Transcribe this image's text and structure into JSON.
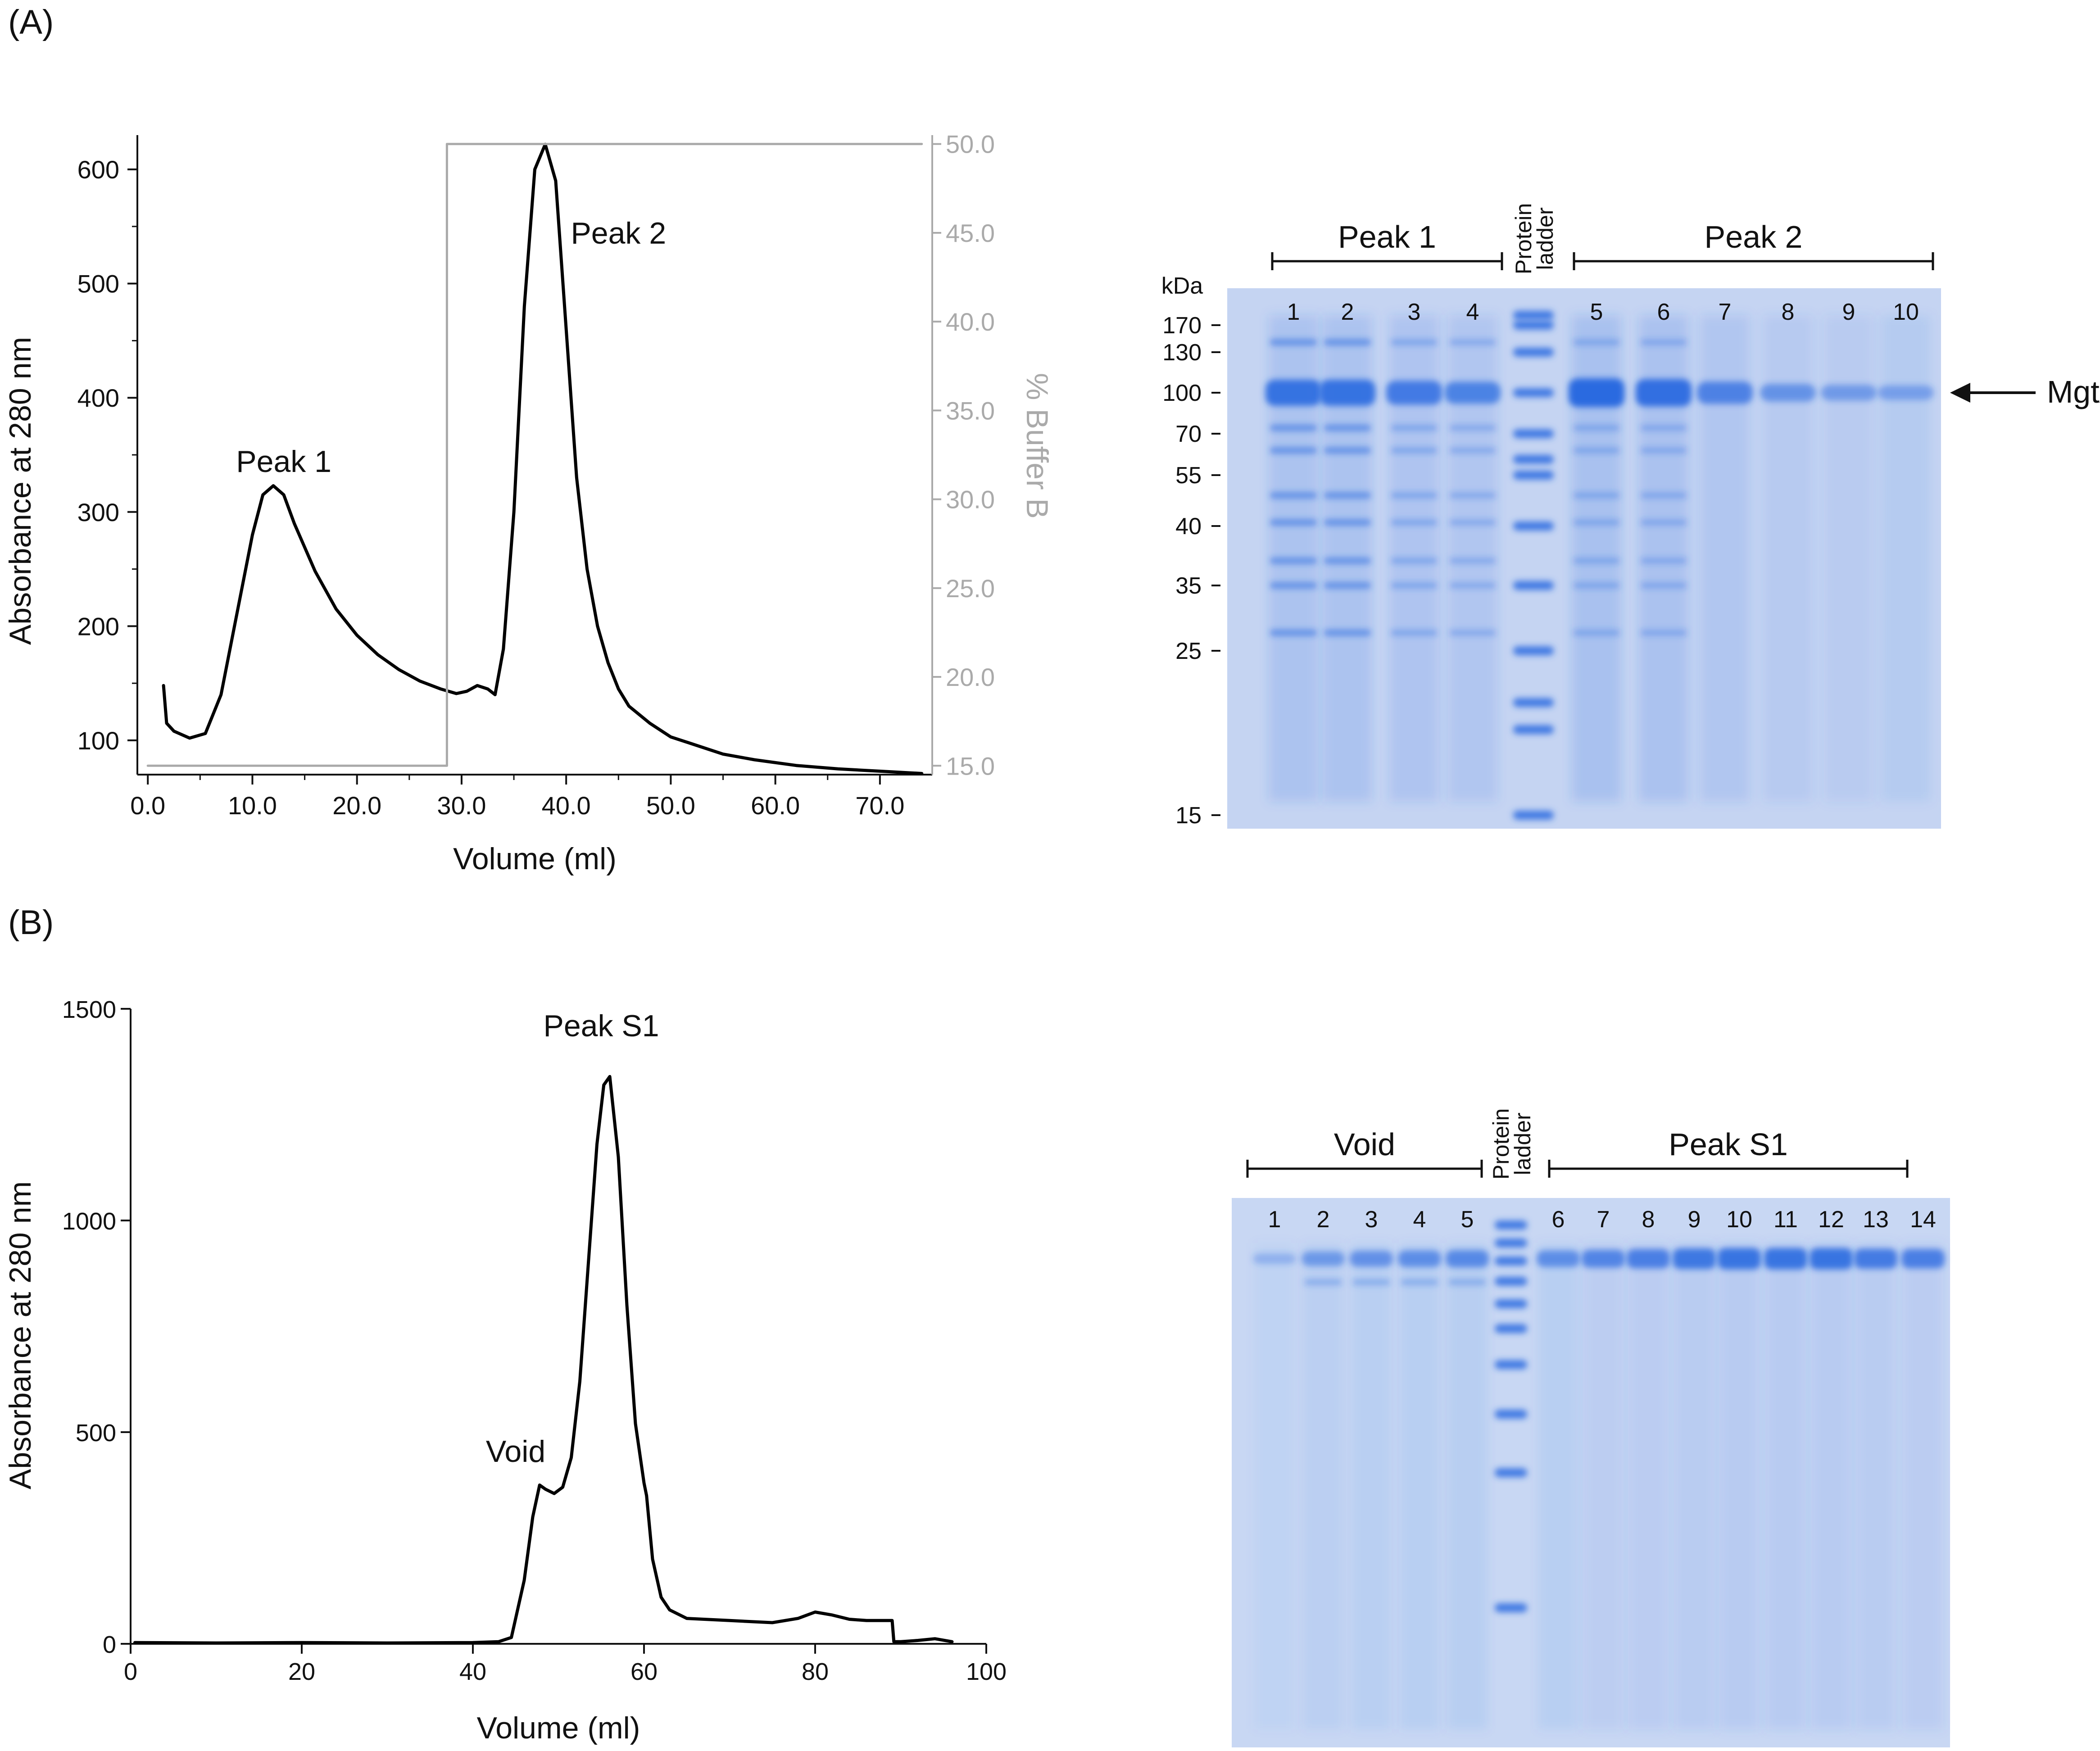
{
  "panel_labels": [
    "(A)",
    "(B)"
  ],
  "chart_data": [
    {
      "type": "line",
      "xlabel": "Volume (ml)",
      "ylabel": "Absorbance at 280 nm",
      "y2label": "% Buffer B",
      "xlim": [
        -1,
        75
      ],
      "ylim": [
        70,
        630
      ],
      "y2lim": [
        14.5,
        50.5
      ],
      "x_ticks": [
        0,
        10,
        20,
        30,
        40,
        50,
        60,
        70
      ],
      "x_tick_labels": [
        "0.0",
        "10.0",
        "20.0",
        "30.0",
        "40.0",
        "50.0",
        "60.0",
        "70.0"
      ],
      "y_ticks": [
        100,
        200,
        300,
        400,
        500,
        600
      ],
      "y_tick_labels": [
        "100",
        "200",
        "300",
        "400",
        "500",
        "600"
      ],
      "y2_ticks": [
        15,
        20,
        25,
        30,
        35,
        40,
        45,
        50
      ],
      "y2_tick_labels": [
        "15.0",
        "20.0",
        "25.0",
        "30.0",
        "35.0",
        "40.0",
        "45.0",
        "50.0"
      ],
      "grid": false,
      "annotations": [
        {
          "text": "Peak 1",
          "x": 13,
          "y": 335
        },
        {
          "text": "Peak 2",
          "x": 45,
          "y": 535
        }
      ],
      "series": [
        {
          "axis": "left",
          "color": "#000000",
          "x": [
            1.5,
            1.8,
            2.5,
            4,
            5.5,
            7,
            8.5,
            10,
            11,
            12,
            13,
            14,
            16,
            18,
            20,
            22,
            24,
            26,
            28,
            29.5,
            30.5,
            31.5,
            32.5,
            33.2,
            34,
            35,
            36,
            37,
            38,
            39,
            40,
            41,
            42,
            43,
            44,
            45,
            46,
            48,
            50,
            52,
            55,
            58,
            62,
            66,
            70,
            74
          ],
          "y": [
            148,
            115,
            108,
            102,
            106,
            140,
            210,
            280,
            315,
            323,
            315,
            290,
            248,
            215,
            192,
            175,
            162,
            152,
            145,
            141,
            143,
            148,
            145,
            140,
            180,
            300,
            480,
            600,
            622,
            590,
            460,
            330,
            250,
            200,
            168,
            145,
            130,
            115,
            103,
            97,
            88,
            83,
            78,
            75,
            73,
            71
          ]
        },
        {
          "axis": "right",
          "color": "#aaaaaa",
          "x": [
            0,
            28.6,
            28.6,
            74
          ],
          "y": [
            15,
            15,
            50,
            50
          ]
        }
      ]
    },
    {
      "type": "line",
      "xlabel": "Volume (ml)",
      "ylabel": "Absorbance at 280 nm",
      "xlim": [
        0,
        100
      ],
      "ylim": [
        0,
        1500
      ],
      "x_ticks": [
        0,
        20,
        40,
        60,
        80,
        100
      ],
      "x_tick_labels": [
        "0",
        "20",
        "40",
        "60",
        "80",
        "100"
      ],
      "y_ticks": [
        0,
        500,
        1000,
        1500
      ],
      "y_tick_labels": [
        "0",
        "500",
        "1000",
        "1500"
      ],
      "grid": false,
      "annotations": [
        {
          "text": "Void",
          "x": 45,
          "y": 430
        },
        {
          "text": "Peak S1",
          "x": 55,
          "y": 1435
        }
      ],
      "series": [
        {
          "color": "#000000",
          "x": [
            0.5,
            10,
            20,
            30,
            40,
            43,
            44.5,
            46,
            47,
            47.8,
            48.5,
            49.5,
            50.5,
            51.5,
            52.5,
            53.5,
            54.5,
            55.3,
            56,
            57,
            58,
            59,
            60,
            60.3,
            61,
            62,
            63,
            65,
            70,
            75,
            78,
            80,
            82,
            84,
            86,
            89,
            89.2,
            90,
            92,
            94,
            96
          ],
          "y": [
            3,
            2,
            3,
            2,
            3,
            5,
            15,
            150,
            300,
            375,
            365,
            355,
            370,
            440,
            620,
            900,
            1180,
            1320,
            1340,
            1150,
            800,
            520,
            380,
            350,
            200,
            110,
            80,
            60,
            55,
            50,
            60,
            75,
            68,
            58,
            55,
            55,
            5,
            5,
            8,
            12,
            5
          ]
        }
      ]
    }
  ],
  "gel_a": {
    "group_labels": [
      "Peak 1",
      "Peak 2"
    ],
    "ladder_label_line1": "Protein",
    "ladder_label_line2": "ladder",
    "kda_label": "kDa",
    "lane_numbers": [
      "1",
      "2",
      "3",
      "4",
      "5",
      "6",
      "7",
      "8",
      "9",
      "10"
    ],
    "markers": [
      "170",
      "130",
      "100",
      "70",
      "55",
      "40",
      "35",
      "25",
      "15"
    ],
    "arrow_label": "MgtA",
    "band_intensity": [
      0.85,
      0.85,
      0.72,
      0.6,
      1.0,
      0.92,
      0.62,
      0.35,
      0.25,
      0.18
    ],
    "colors": {
      "gel": "#c5d4f2",
      "band": "#2a6ae0"
    }
  },
  "gel_b": {
    "group_labels": [
      "Void",
      "Peak S1"
    ],
    "ladder_label_line1": "Protein",
    "ladder_label_line2": "ladder",
    "lane_numbers": [
      "1",
      "2",
      "3",
      "4",
      "5",
      "6",
      "7",
      "8",
      "9",
      "10",
      "11",
      "12",
      "13",
      "14"
    ],
    "band_intensity": [
      0.05,
      0.35,
      0.45,
      0.5,
      0.55,
      0.5,
      0.6,
      0.7,
      0.8,
      0.85,
      0.85,
      0.85,
      0.75,
      0.7
    ],
    "colors": {
      "gel": "#c8d7f3",
      "band": "#2a6ae0"
    }
  }
}
